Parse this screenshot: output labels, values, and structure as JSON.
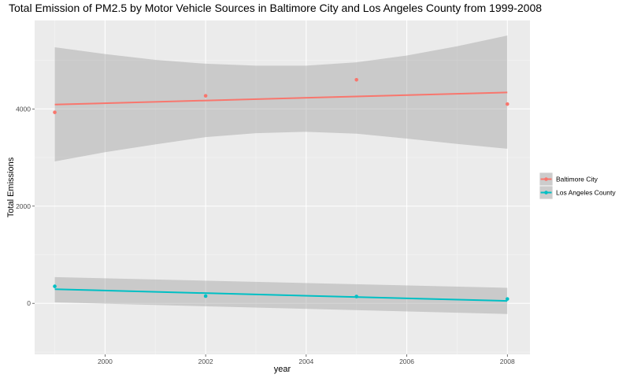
{
  "chart_data": {
    "type": "scatter",
    "title": "Total Emission of PM2.5 by Motor Vehicle Sources in Baltimore City and Los Angeles County from 1999-2008",
    "xlabel": "year",
    "ylabel": "Total Emissions",
    "xlim": [
      1998.6,
      2008.45
    ],
    "ylim": [
      -1050,
      5820
    ],
    "x_ticks": [
      2000,
      2002,
      2004,
      2006,
      2008
    ],
    "y_ticks": [
      0,
      2000,
      4000
    ],
    "x_tick_labels": [
      "2000",
      "2002",
      "2004",
      "2006",
      "2008"
    ],
    "y_tick_labels": [
      "0",
      "2000",
      "4000"
    ],
    "grid": true,
    "legend_position": "right",
    "series": [
      {
        "name": "Baltimore City",
        "color": "#F8766D",
        "x": [
          1999,
          2002,
          2005,
          2008
        ],
        "y": [
          3930,
          4270,
          4600,
          4100
        ],
        "fit_line": [
          [
            1999,
            4090
          ],
          [
            2008,
            4340
          ]
        ],
        "confidence_band": {
          "x": [
            1999,
            2000,
            2001,
            2002,
            2003,
            2004,
            2005,
            2006,
            2007,
            2008
          ],
          "upper": [
            5270,
            5130,
            5010,
            4930,
            4890,
            4890,
            4960,
            5100,
            5290,
            5510
          ],
          "lower": [
            2920,
            3110,
            3270,
            3420,
            3500,
            3530,
            3490,
            3390,
            3280,
            3180
          ]
        }
      },
      {
        "name": "Los Angeles County",
        "color": "#00BFC4",
        "x": [
          1999,
          2002,
          2005,
          2008
        ],
        "y": [
          350,
          150,
          140,
          90
        ],
        "fit_line": [
          [
            1999,
            290
          ],
          [
            2008,
            50
          ]
        ],
        "confidence_band": {
          "x": [
            1999,
            2008
          ],
          "upper": [
            540,
            320
          ],
          "lower": [
            20,
            -220
          ]
        }
      }
    ]
  }
}
